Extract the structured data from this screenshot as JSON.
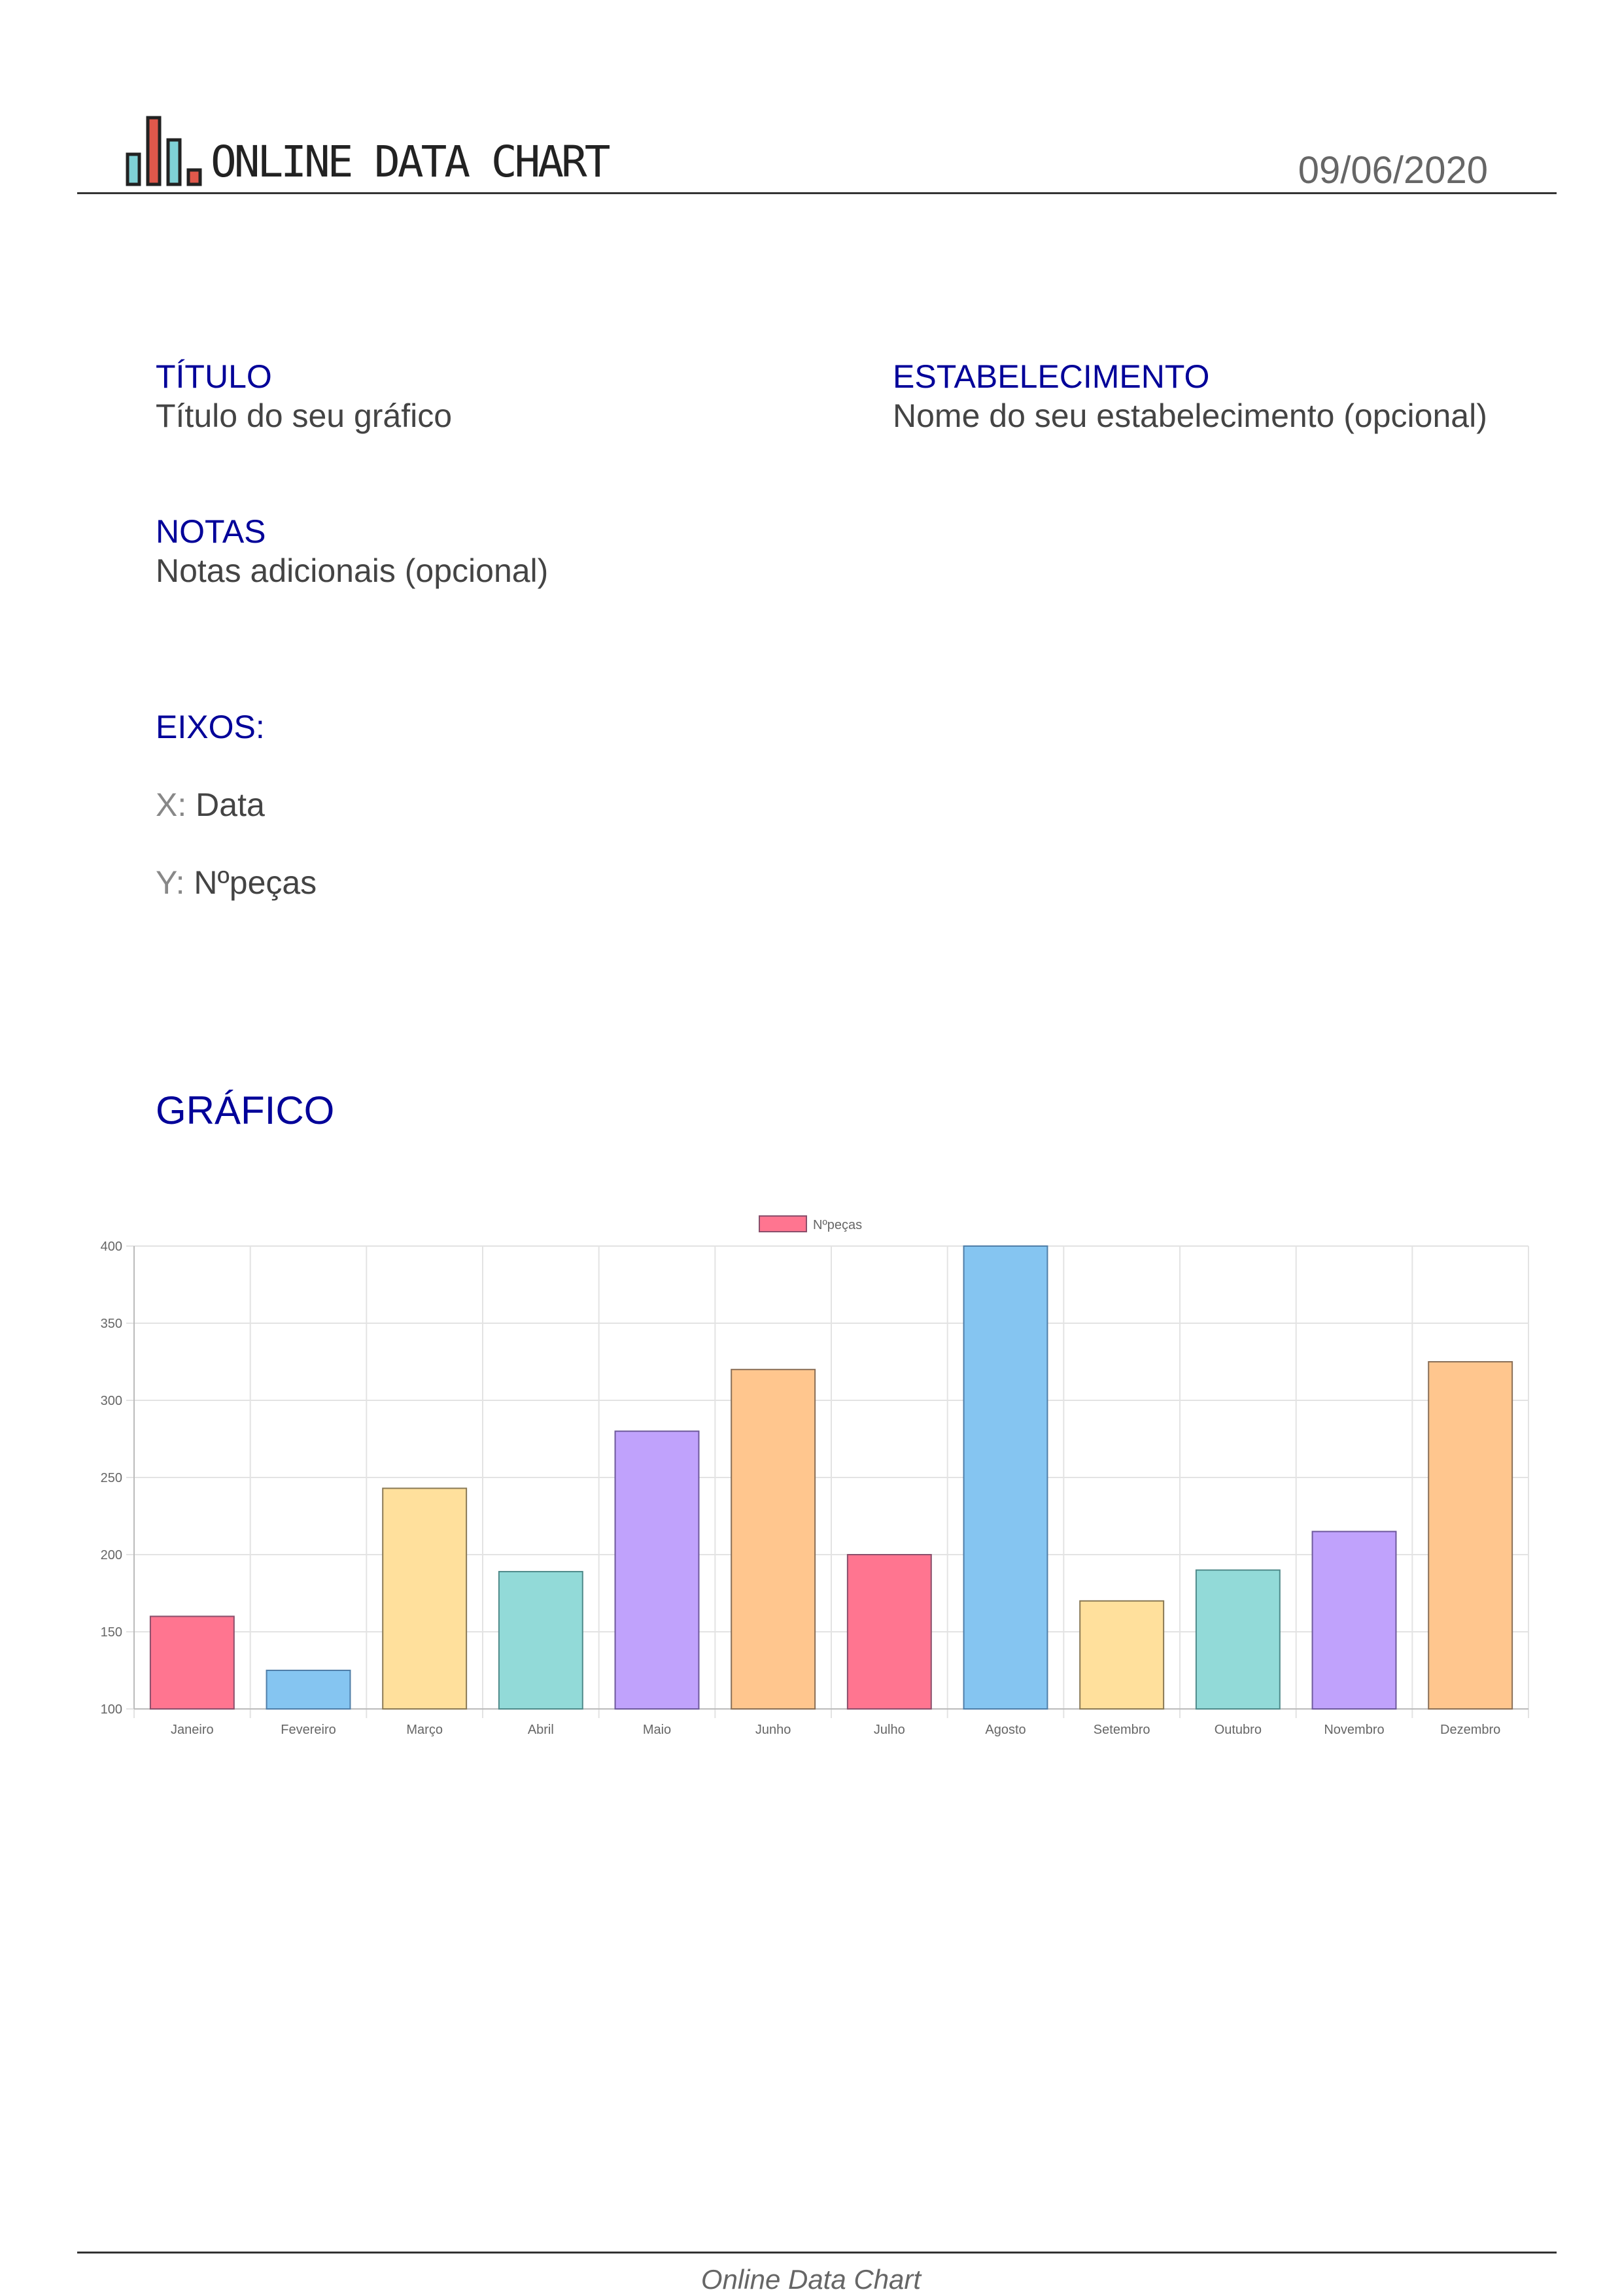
{
  "header": {
    "brand": "ONLINE DATA CHART",
    "date": "09/06/2020"
  },
  "fields": {
    "title_label": "TÍTULO",
    "title_value": "Título do seu gráfico",
    "establishment_label": "ESTABELECIMENTO",
    "establishment_value": "Nome do seu estabelecimento (opcional)",
    "notes_label": "NOTAS",
    "notes_value": "Notas adicionais (opcional)"
  },
  "axes": {
    "heading": "EIXOS:",
    "x_key": "X:",
    "x_value": "Data",
    "y_key": "Y:",
    "y_value": "Nºpeças"
  },
  "chart_heading": "GRÁFICO",
  "chart_data": {
    "type": "bar",
    "categories": [
      "Janeiro",
      "Fevereiro",
      "Março",
      "Abril",
      "Maio",
      "Junho",
      "Julho",
      "Agosto",
      "Setembro",
      "Outubro",
      "Novembro",
      "Dezembro"
    ],
    "series": [
      {
        "name": "Nºpeças",
        "values": [
          160,
          125,
          243,
          189,
          280,
          320,
          200,
          400,
          170,
          190,
          215,
          325
        ]
      }
    ],
    "bar_colors": [
      "#ff7590",
      "#85c5f1",
      "#ffe09c",
      "#92dad8",
      "#c0a2fc",
      "#ffc68e",
      "#ff7590",
      "#85c5f1",
      "#ffe09c",
      "#92dad8",
      "#c0a2fc",
      "#ffc68e"
    ],
    "border_colors": [
      "#8a4f6b",
      "#4f7ea8",
      "#8a7a56",
      "#4f8a8a",
      "#6e5a9c",
      "#8a6f57",
      "#8a4f6b",
      "#4f7ea8",
      "#8a7a56",
      "#4f8a8a",
      "#6e5a9c",
      "#8a6f57"
    ],
    "ylim": [
      100,
      400
    ],
    "yticks": [
      100,
      150,
      200,
      250,
      300,
      350,
      400
    ],
    "grid": true,
    "legend": "top-center"
  },
  "footer": {
    "text": "Online Data Chart"
  }
}
